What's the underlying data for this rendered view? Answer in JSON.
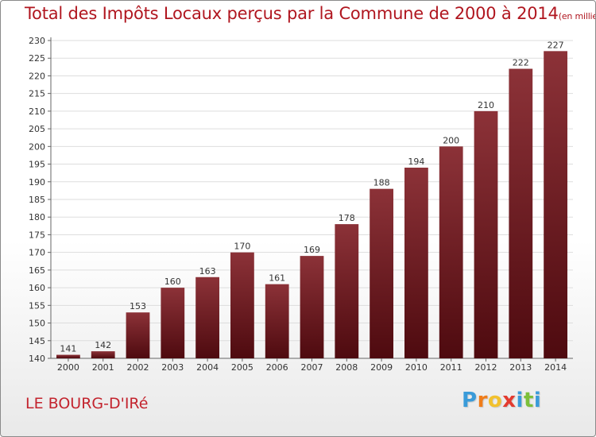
{
  "chart_data": {
    "type": "bar",
    "title": "Total des Impôts Locaux perçus par la Commune de 2000 à 2014",
    "subtitle": "(en milliers d'€)",
    "xlabel": "",
    "ylabel": "",
    "categories": [
      "2000",
      "2001",
      "2002",
      "2003",
      "2004",
      "2005",
      "2006",
      "2007",
      "2008",
      "2009",
      "2010",
      "2011",
      "2012",
      "2013",
      "2014"
    ],
    "values": [
      141,
      142,
      153,
      160,
      163,
      170,
      161,
      169,
      178,
      188,
      194,
      200,
      210,
      222,
      227
    ],
    "ylim": [
      140,
      230
    ],
    "yticks": [
      140,
      145,
      150,
      155,
      160,
      165,
      170,
      175,
      180,
      185,
      190,
      195,
      200,
      205,
      210,
      215,
      220,
      225,
      230
    ],
    "grid": true,
    "legend": "none"
  },
  "footer": {
    "commune_name": "LE BOURG-D'IRé",
    "logo_letters": [
      "P",
      "r",
      "o",
      "x",
      "i",
      "t",
      "i"
    ]
  },
  "colors": {
    "title": "#b0161f",
    "bar_top": "#8c3238",
    "bar_bottom": "#4e0a0f",
    "logo": [
      "#3a9bd9",
      "#f07d1a",
      "#f2c12e",
      "#e33b2f",
      "#3a9bd9",
      "#7cbf3a",
      "#3a9bd9"
    ]
  }
}
